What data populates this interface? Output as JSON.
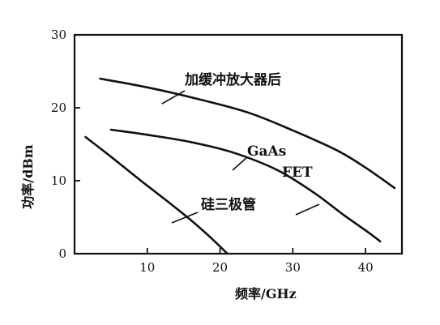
{
  "chart_data": {
    "type": "line",
    "xlabel": "频率/GHz",
    "ylabel": "功率/dBm",
    "xlim": [
      0,
      45
    ],
    "ylim": [
      0,
      30
    ],
    "x_ticks": [
      "10",
      "20",
      "30",
      "40"
    ],
    "x_tick_values": [
      10,
      20,
      30,
      40
    ],
    "y_ticks": [
      "0",
      "10",
      "20",
      "30"
    ],
    "y_tick_values": [
      0,
      10,
      20,
      30
    ],
    "grid": false,
    "legend": "none",
    "series": [
      {
        "name": "加缓冲放大器后",
        "points": [
          [
            3.5,
            24
          ],
          [
            10,
            22.8
          ],
          [
            17,
            21.2
          ],
          [
            24,
            19.3
          ],
          [
            30,
            16.9
          ],
          [
            36,
            14.2
          ],
          [
            40,
            11.8
          ],
          [
            44,
            9
          ]
        ]
      },
      {
        "name": "GaAs FET",
        "points": [
          [
            5,
            17
          ],
          [
            10,
            16.3
          ],
          [
            16,
            15.3
          ],
          [
            22,
            13.8
          ],
          [
            28,
            11.4
          ],
          [
            33,
            8.3
          ],
          [
            37,
            5.3
          ],
          [
            40,
            3.2
          ],
          [
            42,
            1.7
          ]
        ]
      },
      {
        "name": "硅三极管",
        "points": [
          [
            1.5,
            16
          ],
          [
            5,
            13.3
          ],
          [
            9,
            10.1
          ],
          [
            13,
            7
          ],
          [
            16,
            4.6
          ],
          [
            18.5,
            2.4
          ],
          [
            20.5,
            0.5
          ],
          [
            21,
            0
          ]
        ]
      }
    ],
    "annotations": [
      {
        "text": "加缓冲放大器后",
        "series": 0
      },
      {
        "text": "GaAs",
        "series": 1
      },
      {
        "text": "FET",
        "series": 1
      },
      {
        "text": "硅三极管",
        "series": 2
      }
    ]
  },
  "colors": {
    "ink": "#111111",
    "background": "#ffffff"
  }
}
